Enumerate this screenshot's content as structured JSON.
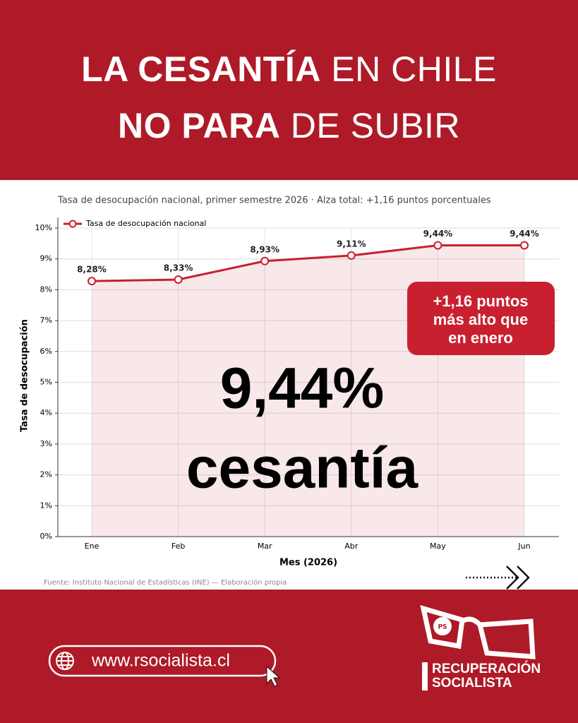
{
  "header": {
    "line1": {
      "bold": "LA CESANTÍA",
      "regular": "EN CHILE"
    },
    "line2": {
      "bold": "NO PARA",
      "regular": "DE SUBIR"
    }
  },
  "chart_data": {
    "type": "line",
    "subtitle": "Tasa de desocupación nacional, primer semestre 2026 · Alza total: +1,16 puntos porcentuales",
    "categories": [
      "Ene",
      "Feb",
      "Mar",
      "Abr",
      "May",
      "Jun"
    ],
    "series": [
      {
        "name": "Tasa de desocupación nacional",
        "color": "#c8202f",
        "values": [
          8.28,
          8.33,
          8.93,
          9.11,
          9.44,
          9.44
        ],
        "value_labels": [
          "8,28%",
          "8,33%",
          "8,93%",
          "9,11%",
          "9,44%",
          "9,44%"
        ]
      }
    ],
    "ylim": [
      0,
      10
    ],
    "yticks": [
      {
        "value": 0,
        "label": "0%"
      },
      {
        "value": 1,
        "label": "1%"
      },
      {
        "value": 2,
        "label": "2%"
      },
      {
        "value": 3,
        "label": "3%"
      },
      {
        "value": 4,
        "label": "4%"
      },
      {
        "value": 5,
        "label": "5%"
      },
      {
        "value": 6,
        "label": "6%"
      },
      {
        "value": 7,
        "label": "7%"
      },
      {
        "value": 8,
        "label": "8%"
      },
      {
        "value": 9,
        "label": "9%"
      },
      {
        "value": 10,
        "label": "10%"
      }
    ],
    "xlabel": "Mes (2026)",
    "ylabel": "Tasa de desocupación",
    "grid": true,
    "legend": "upper left",
    "fill": true,
    "annotation": [
      "+1,16 puntos",
      "más alto que",
      "en enero"
    ],
    "headline": [
      "9,44%",
      "cesantía"
    ],
    "source": "Fuente: Instituto Nacional de Estadísticas (INE) — Elaboración propia"
  },
  "footer": {
    "url": "www.rsocialista.cl",
    "logo": [
      "RECUPERACIÓN",
      "SOCIALISTA"
    ],
    "badge": "PS"
  }
}
